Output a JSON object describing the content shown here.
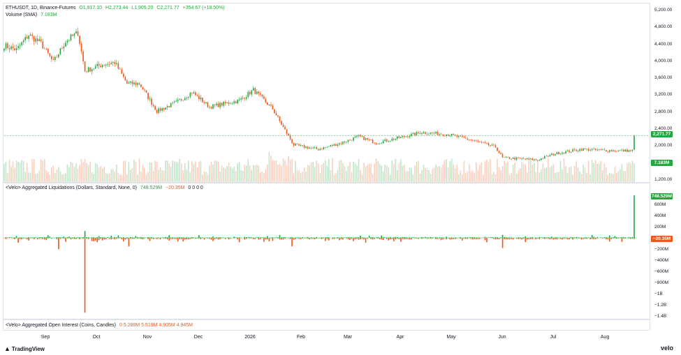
{
  "colors": {
    "up": "#26a641",
    "down": "#f0571a",
    "grid": "#e0e3eb",
    "text": "#131722"
  },
  "legends": {
    "price": {
      "symbol": "ETHUSDT, 1D, Binance-Futures",
      "open": "O1,917.10",
      "high": "H2,273.44",
      "low": "L1,905.20",
      "close": "C2,271.77",
      "change": "+354.67 (+18.50%)"
    },
    "volume": {
      "label": "Volume (SMA)",
      "value": "7.183M"
    },
    "liquidations": {
      "label": "<Velo> Aggregated Liquidations (Dollars, Standard, None, 0)",
      "v1": "748.529M",
      "v2": "−20.35M",
      "zeros": "0 0 0 0"
    },
    "open_interest": {
      "label": "<Velo> Aggregated Open Interest (Coins, Candles)",
      "values": "0  5.288M  5.519M  4.905M  4.945M"
    }
  },
  "price_axis": [
    "5,200.00",
    "4,800.00",
    "4,400.00",
    "4,000.00",
    "3,600.00",
    "3,200.00",
    "2,800.00",
    "2,400.00",
    "2,000.00",
    "1,200.00"
  ],
  "liq_axis": [
    "600M",
    "400M",
    "200M",
    "−200M",
    "−400M",
    "−600M",
    "−800M",
    "−1B",
    "−1.2B",
    "−1.4B"
  ],
  "tags": {
    "price": "2,271.77",
    "volume": "7.183M",
    "liq_pos": "748.529M",
    "liq_neg": "−20.35M"
  },
  "months": [
    "Sep",
    "Oct",
    "Nov",
    "Dec",
    "2026",
    "Feb",
    "Mar",
    "Apr",
    "May",
    "Jun",
    "Jul",
    "Aug"
  ],
  "branding": {
    "left": "TradingView",
    "right": "velo"
  },
  "chart_data": [
    {
      "type": "candlestick",
      "title": "ETHUSDT, 1D, Binance-Futures",
      "y_range": [
        1200,
        5200
      ],
      "close_path": [
        [
          "2025-08-25",
          4400
        ],
        [
          "2025-09-01",
          4300
        ],
        [
          "2025-09-08",
          4650
        ],
        [
          "2025-09-15",
          4450
        ],
        [
          "2025-09-22",
          4000
        ],
        [
          "2025-09-29",
          4500
        ],
        [
          "2025-10-06",
          4700
        ],
        [
          "2025-10-10",
          3800
        ],
        [
          "2025-10-20",
          3950
        ],
        [
          "2025-10-27",
          4000
        ],
        [
          "2025-11-03",
          3500
        ],
        [
          "2025-11-10",
          3500
        ],
        [
          "2025-11-20",
          2850
        ],
        [
          "2025-12-01",
          3050
        ],
        [
          "2025-12-10",
          3300
        ],
        [
          "2025-12-20",
          2950
        ],
        [
          "2026-01-06",
          3100
        ],
        [
          "2026-01-14",
          3350
        ],
        [
          "2026-01-25",
          2900
        ],
        [
          "2026-02-01",
          2400
        ],
        [
          "2026-02-06",
          2050
        ],
        [
          "2026-02-20",
          1950
        ],
        [
          "2026-03-05",
          2100
        ],
        [
          "2026-03-15",
          2250
        ],
        [
          "2026-03-25",
          2100
        ],
        [
          "2026-04-10",
          2250
        ],
        [
          "2026-04-20",
          2350
        ],
        [
          "2026-05-05",
          2300
        ],
        [
          "2026-05-20",
          2150
        ],
        [
          "2026-06-01",
          2000
        ],
        [
          "2026-06-05",
          1750
        ],
        [
          "2026-06-25",
          1700
        ],
        [
          "2026-07-05",
          1850
        ],
        [
          "2026-07-20",
          1950
        ],
        [
          "2026-08-05",
          1920
        ],
        [
          "2026-08-18",
          1917
        ],
        [
          "2026-08-19",
          2271.77
        ]
      ]
    },
    {
      "type": "bar",
      "title": "<Velo> Aggregated Liquidations (Dollars, Standard, None, 0)",
      "y_range": [
        -1400,
        800
      ],
      "unit": "M",
      "notable": [
        {
          "date": "2025-09-25",
          "value": -200
        },
        {
          "date": "2025-10-10",
          "value": -1320
        },
        {
          "date": "2025-10-10",
          "value": 120
        },
        {
          "date": "2025-11-04",
          "value": -150
        },
        {
          "date": "2026-02-05",
          "value": -150
        },
        {
          "date": "2026-06-05",
          "value": -180
        },
        {
          "date": "2026-08-19",
          "value": 748.529
        },
        {
          "date": "2026-08-19",
          "value": -20.35
        }
      ]
    }
  ]
}
